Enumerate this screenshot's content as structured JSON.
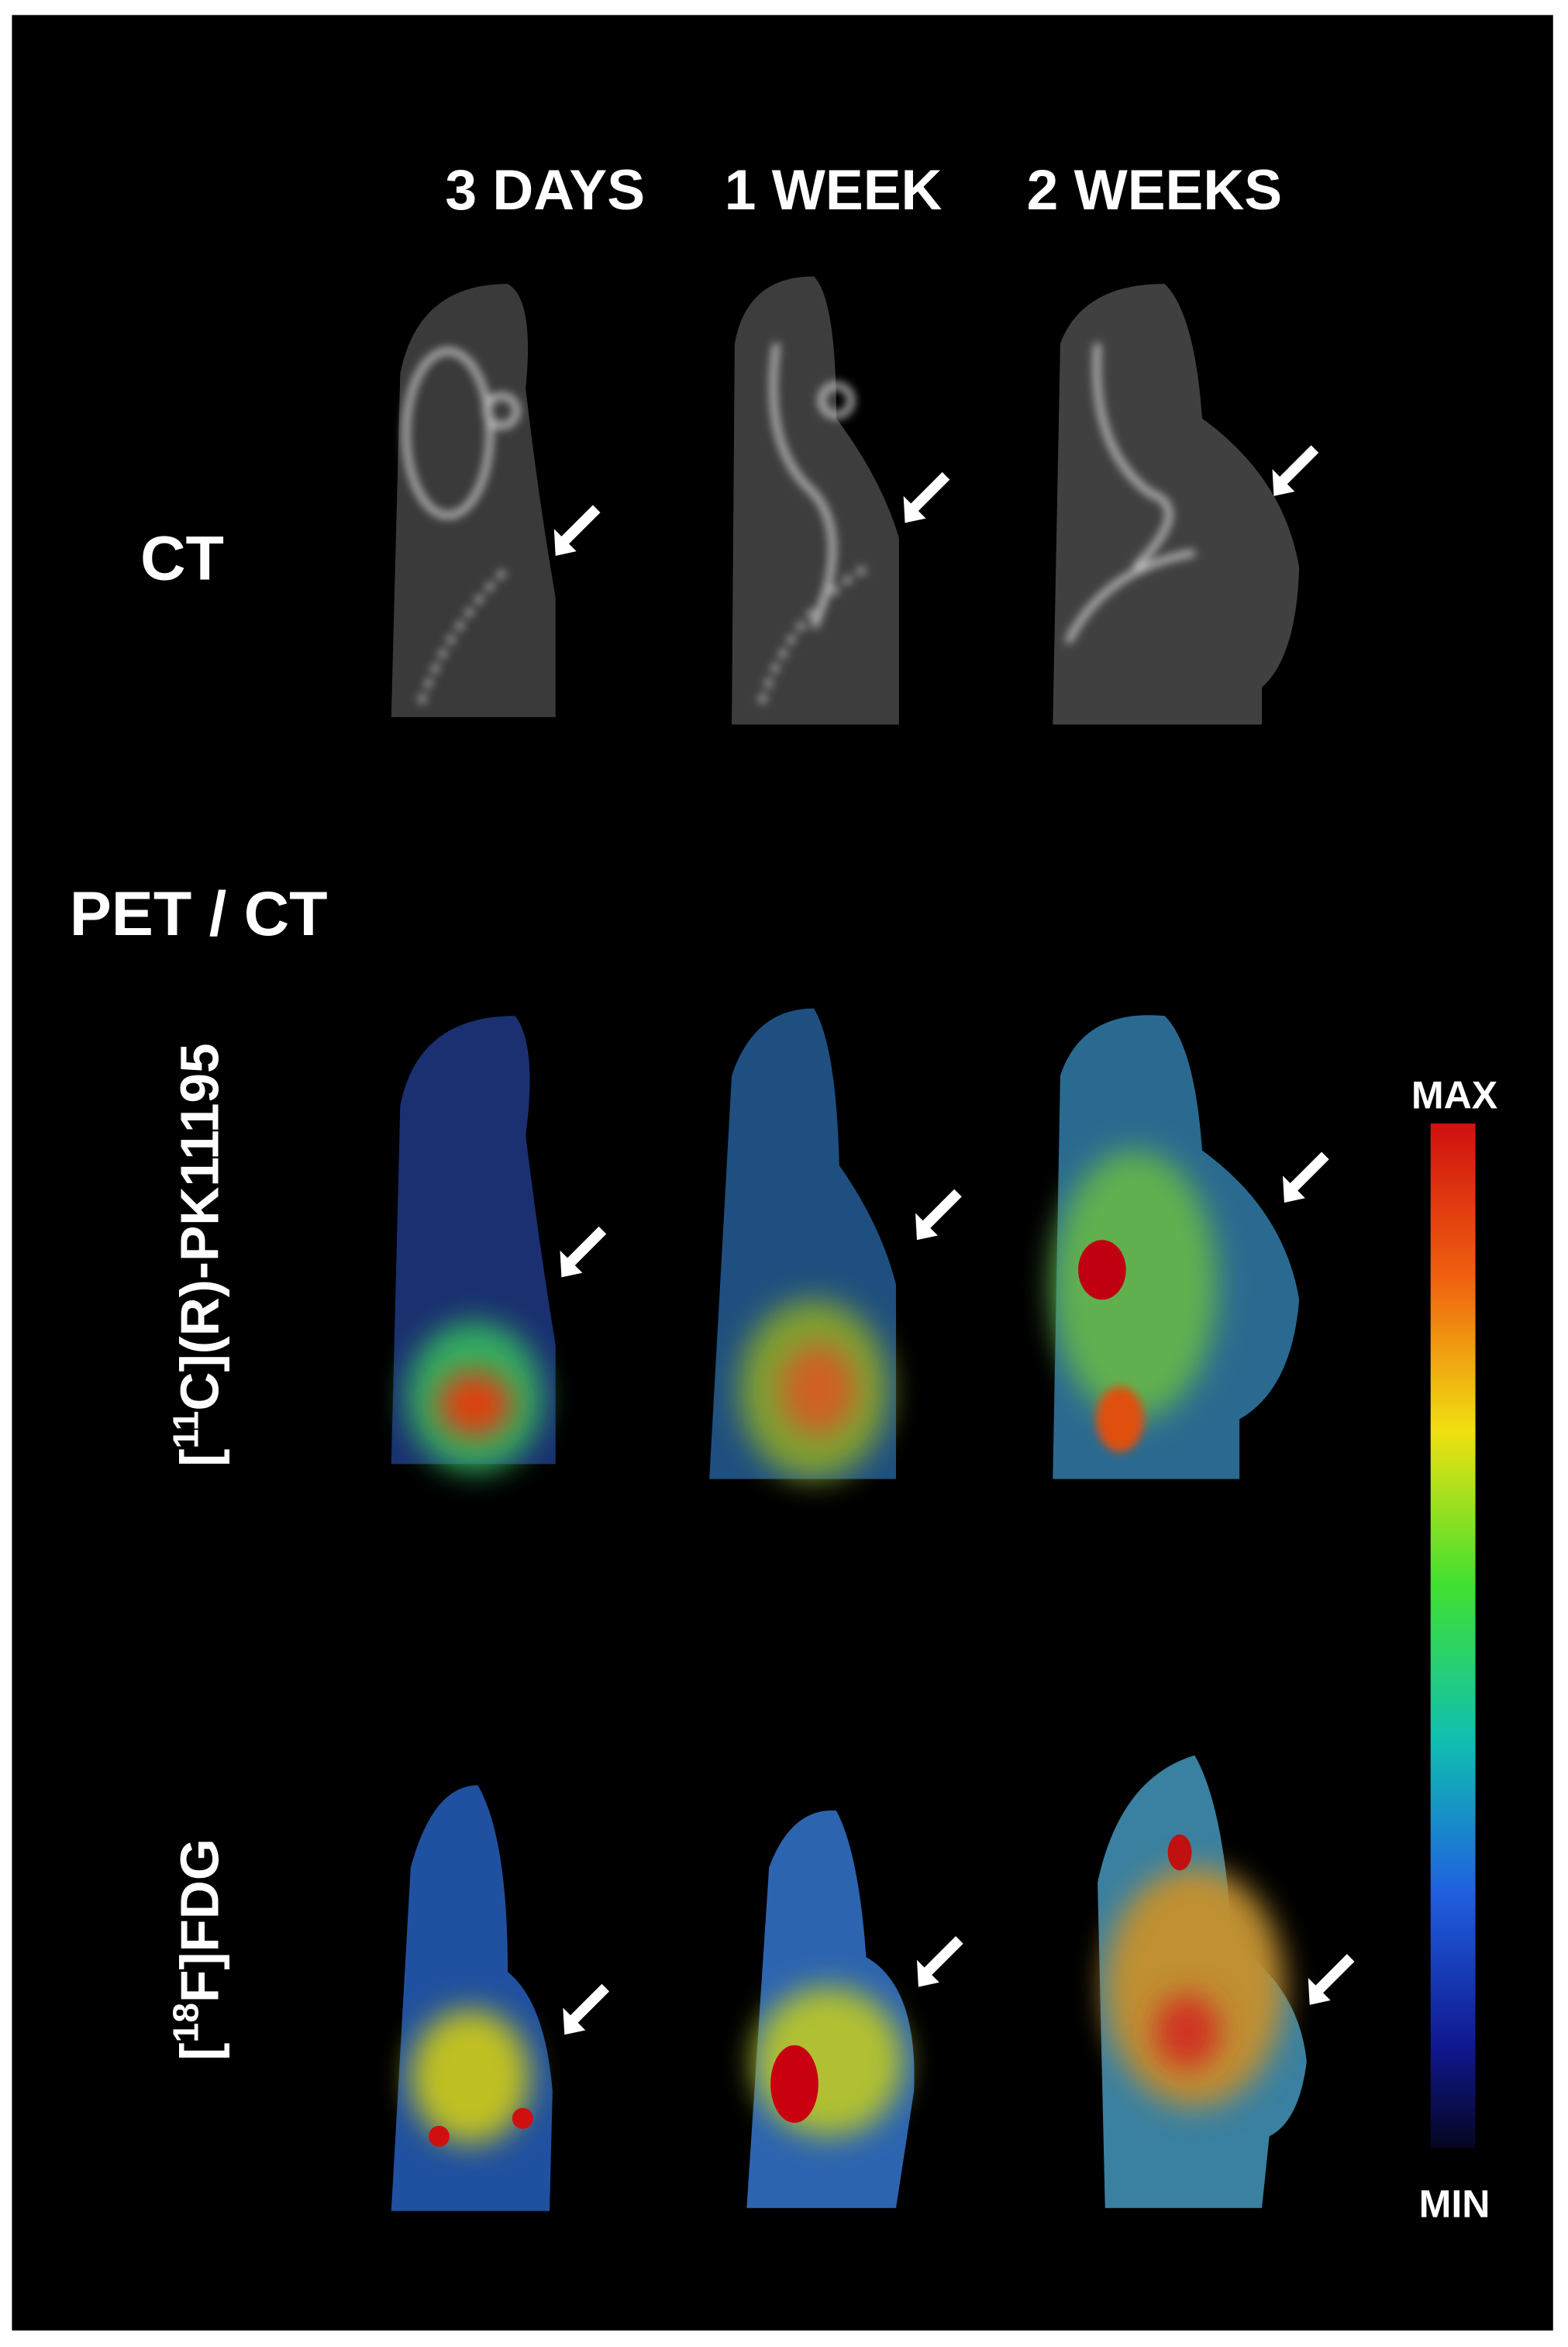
{
  "columns": [
    "3 DAYS",
    "1 WEEK",
    "2 WEEKS"
  ],
  "rows": {
    "ct": "CT",
    "petct": "PET / CT"
  },
  "tracers": [
    {
      "before": "[",
      "sup": "11",
      "after": "C](R)-PK11195"
    },
    {
      "before": "[",
      "sup": "18",
      "after": "F]FDG"
    }
  ],
  "scale": {
    "max": "MAX",
    "min": "MIN"
  }
}
